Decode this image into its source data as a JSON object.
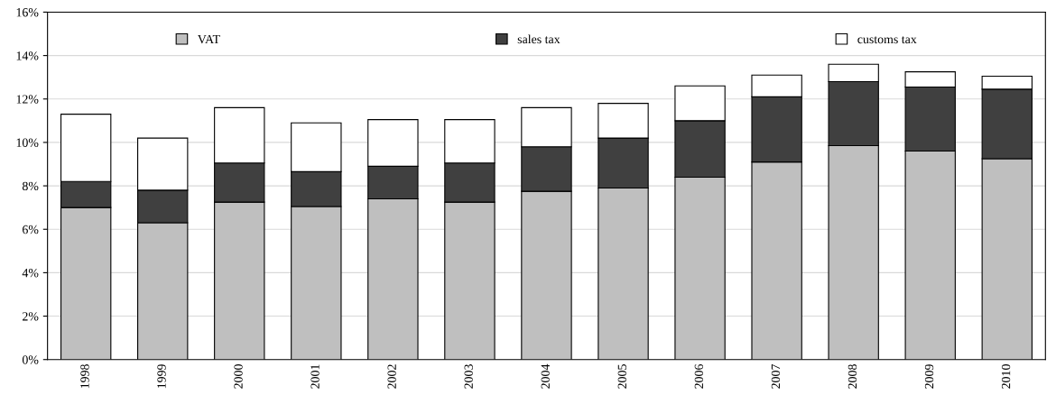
{
  "chart_data": {
    "type": "bar",
    "stacked": true,
    "categories": [
      "1998",
      "1999",
      "2000",
      "2001",
      "2002",
      "2003",
      "2004",
      "2005",
      "2006",
      "2007",
      "2008",
      "2009",
      "2010"
    ],
    "series": [
      {
        "name": "VAT",
        "color": "#bfbfbf",
        "values": [
          7.0,
          6.3,
          7.25,
          7.05,
          7.4,
          7.25,
          7.75,
          7.9,
          8.4,
          9.1,
          9.85,
          9.6,
          9.25
        ]
      },
      {
        "name": "sales tax",
        "color": "#404040",
        "values": [
          1.2,
          1.5,
          1.8,
          1.6,
          1.5,
          1.8,
          2.05,
          2.3,
          2.6,
          3.0,
          2.95,
          2.95,
          3.2
        ]
      },
      {
        "name": "customs tax",
        "color": "#ffffff",
        "values": [
          3.1,
          2.4,
          2.55,
          2.25,
          2.15,
          2.0,
          1.8,
          1.6,
          1.6,
          1.0,
          0.8,
          0.7,
          0.6
        ]
      }
    ],
    "ylim": [
      0,
      16
    ],
    "yticks": [
      {
        "value": 0,
        "label": "0%"
      },
      {
        "value": 2,
        "label": "2%"
      },
      {
        "value": 4,
        "label": "4%"
      },
      {
        "value": 6,
        "label": "6%"
      },
      {
        "value": 8,
        "label": "8%"
      },
      {
        "value": 10,
        "label": "10%"
      },
      {
        "value": 12,
        "label": "12%"
      },
      {
        "value": 14,
        "label": "14%"
      },
      {
        "value": 16,
        "label": "16%"
      }
    ],
    "grid": "y",
    "legend": "top"
  }
}
